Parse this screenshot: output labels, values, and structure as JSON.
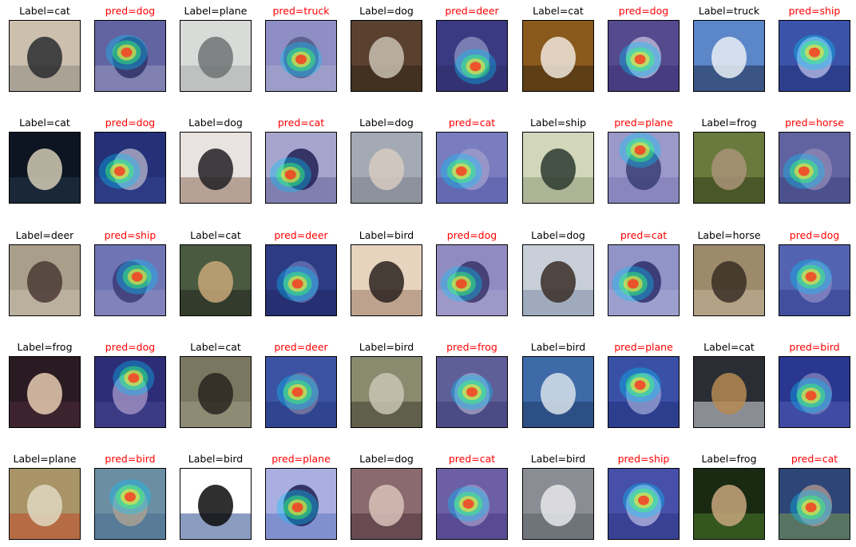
{
  "figure": {
    "rows": [
      [
        {
          "kind": "label",
          "text": "Label=cat",
          "palette": [
            "#cdbfae",
            "#2a2b2f",
            "#8f8a84"
          ]
        },
        {
          "kind": "pred",
          "text": "pred=dog",
          "palette": [
            "#6d6f9f",
            "#2c2e55",
            "#b7b4c4"
          ]
        },
        {
          "kind": "label",
          "text": "Label=plane",
          "palette": [
            "#d9dbd9",
            "#6f7373",
            "#a8acaa"
          ]
        },
        {
          "kind": "pred",
          "text": "pred=truck",
          "palette": [
            "#a6a6cc",
            "#5f627f",
            "#c9c8d8"
          ]
        },
        {
          "kind": "label",
          "text": "Label=dog",
          "palette": [
            "#5a402e",
            "#c8bfb2",
            "#2f2218"
          ]
        },
        {
          "kind": "pred",
          "text": "pred=deer",
          "palette": [
            "#3a3a78",
            "#9aa0c0",
            "#2a2a58"
          ]
        },
        {
          "kind": "label",
          "text": "Label=cat",
          "palette": [
            "#8a5a1c",
            "#efe7dc",
            "#3a2810"
          ]
        },
        {
          "kind": "pred",
          "text": "pred=dog",
          "palette": [
            "#5c4f86",
            "#d8d2df",
            "#3b3066"
          ]
        },
        {
          "kind": "label",
          "text": "Label=truck",
          "palette": [
            "#5b86c8",
            "#e9eef5",
            "#1f2e4c"
          ]
        },
        {
          "kind": "pred",
          "text": "pred=ship",
          "palette": [
            "#3b5aa8",
            "#cbd4ef",
            "#1b2a66"
          ]
        }
      ],
      [
        {
          "kind": "label",
          "text": "Label=cat",
          "palette": [
            "#0c1521",
            "#d4cbb4",
            "#263648"
          ]
        },
        {
          "kind": "pred",
          "text": "pred=dog",
          "palette": [
            "#1e2f6b",
            "#c7c6c9",
            "#33478a"
          ]
        },
        {
          "kind": "label",
          "text": "Label=dog",
          "palette": [
            "#e8e2e0",
            "#222025",
            "#8c6c58"
          ]
        },
        {
          "kind": "pred",
          "text": "pred=cat",
          "palette": [
            "#c6c3d8",
            "#1a1a3e",
            "#6e6a96"
          ]
        },
        {
          "kind": "label",
          "text": "Label=dog",
          "palette": [
            "#a4aab4",
            "#d6cbc1",
            "#7a7e8a"
          ]
        },
        {
          "kind": "pred",
          "text": "pred=cat",
          "palette": [
            "#8b90c6",
            "#b9b5d4",
            "#5d62a6"
          ]
        },
        {
          "kind": "label",
          "text": "Label=ship",
          "palette": [
            "#d2d6bb",
            "#2b3a2f",
            "#8a9a76"
          ]
        },
        {
          "kind": "pred",
          "text": "pred=plane",
          "palette": [
            "#b7b3d4",
            "#3a3f66",
            "#8c89b4"
          ]
        },
        {
          "kind": "label",
          "text": "Label=frog",
          "palette": [
            "#6a7a3e",
            "#a99378",
            "#2f3a18"
          ]
        },
        {
          "kind": "pred",
          "text": "pred=horse",
          "palette": [
            "#6b6f9d",
            "#a29ab6",
            "#3c4170"
          ]
        }
      ],
      [
        {
          "kind": "label",
          "text": "Label=deer",
          "palette": [
            "#a89e8a",
            "#4a3a34",
            "#c9bfae"
          ]
        },
        {
          "kind": "pred",
          "text": "pred=ship",
          "palette": [
            "#7e84b8",
            "#3c3a6a",
            "#a8a8c8"
          ]
        },
        {
          "kind": "label",
          "text": "Label=cat",
          "palette": [
            "#4a5a40",
            "#c9a77a",
            "#20251c"
          ]
        },
        {
          "kind": "pred",
          "text": "pred=deer",
          "palette": [
            "#2a3b7a",
            "#6f7fb0",
            "#17204e"
          ]
        },
        {
          "kind": "label",
          "text": "Label=bird",
          "palette": [
            "#e6d4be",
            "#2a2220",
            "#9a7a66"
          ]
        },
        {
          "kind": "pred",
          "text": "pred=dog",
          "palette": [
            "#a8a3c8",
            "#3a3258",
            "#c8c0d8"
          ]
        },
        {
          "kind": "label",
          "text": "Label=dog",
          "palette": [
            "#c8cfd8",
            "#3a2e28",
            "#7e8ea6"
          ]
        },
        {
          "kind": "pred",
          "text": "pred=cat",
          "palette": [
            "#a8add0",
            "#2a2a5a",
            "#c7cbe0"
          ]
        },
        {
          "kind": "label",
          "text": "Label=horse",
          "palette": [
            "#9c8a6a",
            "#3a2e24",
            "#c6b69a"
          ]
        },
        {
          "kind": "pred",
          "text": "pred=dog",
          "palette": [
            "#5c6fb4",
            "#9a9ac8",
            "#33408a"
          ]
        }
      ],
      [
        {
          "kind": "label",
          "text": "Label=frog",
          "palette": [
            "#2a1a22",
            "#e6cdb2",
            "#4a2c38"
          ]
        },
        {
          "kind": "pred",
          "text": "pred=dog",
          "palette": [
            "#2a2a6a",
            "#b7a6c9",
            "#4a4a8a"
          ]
        },
        {
          "kind": "label",
          "text": "Label=cat",
          "palette": [
            "#7a7660",
            "#2a2420",
            "#9e9a84"
          ]
        },
        {
          "kind": "pred",
          "text": "pred=deer",
          "palette": [
            "#3c5aa0",
            "#8a8a9c",
            "#233a78"
          ]
        },
        {
          "kind": "label",
          "text": "Label=bird",
          "palette": [
            "#8a8a6e",
            "#c8c4b4",
            "#3e3c30"
          ]
        },
        {
          "kind": "pred",
          "text": "pred=frog",
          "palette": [
            "#6a6a94",
            "#b8b6c8",
            "#3a3a66"
          ]
        },
        {
          "kind": "label",
          "text": "Label=bird",
          "palette": [
            "#3e6aa8",
            "#d8e2ea",
            "#1e3a66"
          ]
        },
        {
          "kind": "pred",
          "text": "pred=plane",
          "palette": [
            "#3a56a6",
            "#a8b4d8",
            "#1c2e70"
          ]
        },
        {
          "kind": "label",
          "text": "Label=cat",
          "palette": [
            "#2a2e34",
            "#b58a52",
            "#d9dde4"
          ]
        },
        {
          "kind": "pred",
          "text": "pred=bird",
          "palette": [
            "#26368a",
            "#8c8eba",
            "#5a68b8"
          ]
        }
      ],
      [
        {
          "kind": "label",
          "text": "Label=plane",
          "palette": [
            "#a89466",
            "#e0d8c2",
            "#c04a2a"
          ]
        },
        {
          "kind": "pred",
          "text": "pred=bird",
          "palette": [
            "#7aa6a0",
            "#c9c08e",
            "#4a7a8a"
          ]
        },
        {
          "kind": "label",
          "text": "Label=bird",
          "palette": [
            "#ffffff",
            "#0a0a0a",
            "#2a4a8a"
          ]
        },
        {
          "kind": "pred",
          "text": "pred=plane",
          "palette": [
            "#c8d0f0",
            "#1a1a3a",
            "#6a86c8"
          ]
        },
        {
          "kind": "label",
          "text": "Label=dog",
          "palette": [
            "#8a6a6e",
            "#d8c2b8",
            "#4a3238"
          ]
        },
        {
          "kind": "pred",
          "text": "pred=cat",
          "palette": [
            "#7a6aa6",
            "#b8a8c8",
            "#4a3a7a"
          ]
        },
        {
          "kind": "label",
          "text": "Label=bird",
          "palette": [
            "#8a8e94",
            "#e8e8ea",
            "#5a5e66"
          ]
        },
        {
          "kind": "pred",
          "text": "pred=ship",
          "palette": [
            "#4a56a8",
            "#c8cbe8",
            "#2a3478"
          ]
        },
        {
          "kind": "label",
          "text": "Label=frog",
          "palette": [
            "#1a2a12",
            "#c9a67e",
            "#4a7a2a"
          ]
        },
        {
          "kind": "pred",
          "text": "pred=cat",
          "palette": [
            "#2a4a6a",
            "#c8a88a",
            "#8ab43a"
          ]
        }
      ]
    ]
  }
}
